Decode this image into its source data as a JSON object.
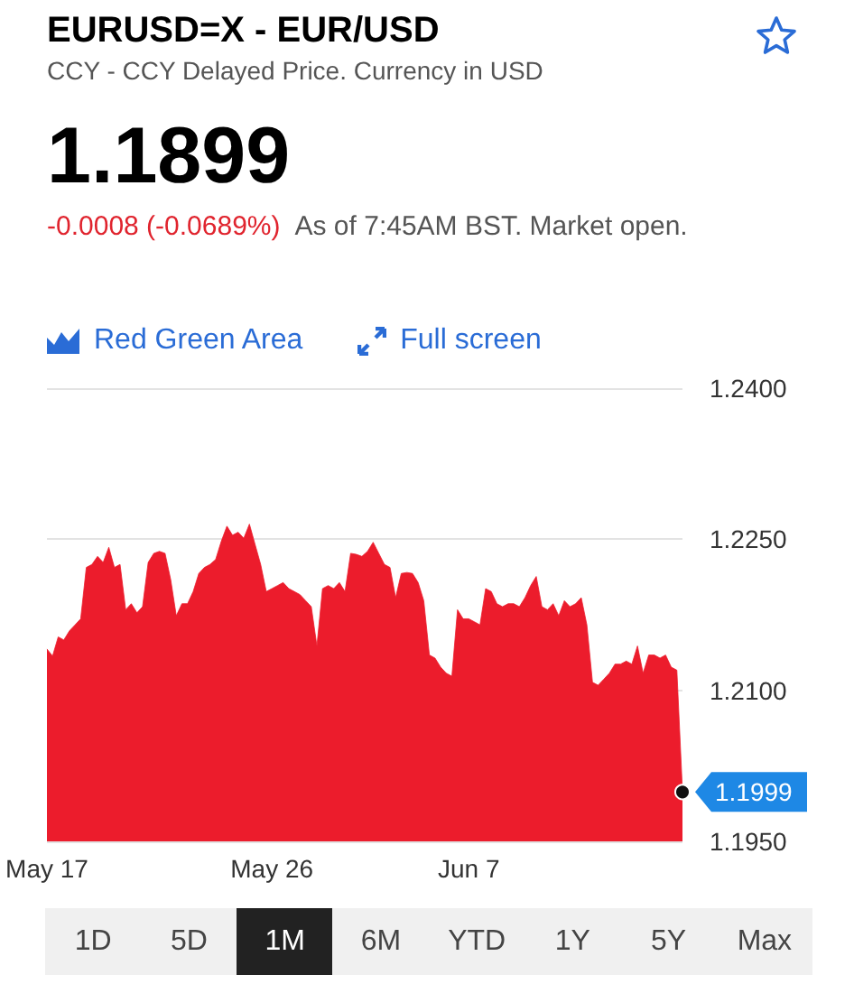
{
  "chart_data": {
    "type": "area",
    "title": "EURUSD=X - EUR/USD",
    "subtitle": "CCY - CCY Delayed Price. Currency in USD",
    "annotations": [
      "1.1899",
      "-0.0008 (-0.0689%)",
      "As of 7:45AM BST. Market open.",
      "Red Green Area",
      "Full screen",
      "1D",
      "5D",
      "1M",
      "6M",
      "YTD",
      "1Y",
      "5Y",
      "Max",
      "1.1999"
    ],
    "categories": [
      "May 17",
      null,
      null,
      null,
      null,
      null,
      null,
      null,
      null,
      null,
      null,
      null,
      null,
      null,
      null,
      null,
      null,
      null,
      null,
      null,
      null,
      null,
      null,
      null,
      null,
      null,
      null,
      null,
      null,
      null,
      null,
      null,
      null,
      null,
      null,
      null,
      null,
      null,
      null,
      null,
      "May 26",
      null,
      null,
      null,
      null,
      null,
      null,
      null,
      null,
      null,
      null,
      null,
      null,
      null,
      null,
      null,
      null,
      null,
      null,
      null,
      null,
      null,
      null,
      null,
      null,
      null,
      null,
      null,
      null,
      null,
      null,
      null,
      null,
      null,
      null,
      "Jun 7",
      null,
      null,
      null,
      null,
      null,
      null,
      null,
      null,
      null,
      null,
      null,
      null,
      null,
      null,
      null,
      null,
      null,
      null,
      null,
      null,
      null,
      null,
      null,
      null,
      null,
      null,
      null,
      null,
      null,
      null,
      null,
      null,
      null,
      null,
      null,
      null,
      null,
      null
    ],
    "series": [
      {
        "color": "#ec1c2c",
        "values": [
          1.2141,
          1.2134,
          1.2153,
          1.215,
          1.2159,
          1.2165,
          1.2171,
          1.2222,
          1.2225,
          1.2233,
          1.2227,
          1.2242,
          1.2222,
          1.2225,
          1.218,
          1.2186,
          1.2177,
          1.2183,
          1.2227,
          1.2236,
          1.2238,
          1.2236,
          1.221,
          1.2174,
          1.2186,
          1.2186,
          1.2198,
          1.2216,
          1.2222,
          1.2225,
          1.223,
          1.2248,
          1.2263,
          1.2254,
          1.2257,
          1.2251,
          1.2265,
          1.2245,
          1.2225,
          1.2198,
          1.2201,
          1.2204,
          1.2207,
          1.2201,
          1.2198,
          1.2195,
          1.2189,
          1.2183,
          1.2144,
          1.2201,
          1.2204,
          1.2201,
          1.2207,
          1.2198,
          1.2236,
          1.2235,
          1.2233,
          1.2238,
          1.2247,
          1.2236,
          1.2225,
          1.2222,
          1.2192,
          1.2216,
          1.2217,
          1.2216,
          1.2207,
          1.2189,
          1.2135,
          1.2132,
          1.2123,
          1.2117,
          1.2114,
          1.218,
          1.2171,
          1.2171,
          1.2168,
          1.2165,
          1.2201,
          1.2198,
          1.2186,
          1.2183,
          1.2186,
          1.2186,
          1.2183,
          1.2192,
          1.2204,
          1.2213,
          1.2183,
          1.218,
          1.2186,
          1.2174,
          1.2189,
          1.2183,
          1.2186,
          1.2192,
          1.2165,
          1.2108,
          1.2105,
          1.2111,
          1.2117,
          1.2126,
          1.2126,
          1.2129,
          1.2126,
          1.2144,
          1.2117,
          1.2135,
          1.2135,
          1.2132,
          1.2135,
          1.2123,
          1.212,
          1.1999
        ]
      }
    ],
    "ylim": [
      1.195,
      1.24
    ],
    "yticks": [
      {
        "value": 1.195,
        "label": "1.1950"
      },
      {
        "value": 1.21,
        "label": "1.2100"
      },
      {
        "value": 1.225,
        "label": "1.2250"
      },
      {
        "value": 1.24,
        "label": "1.2400"
      }
    ],
    "grid": "y"
  }
}
